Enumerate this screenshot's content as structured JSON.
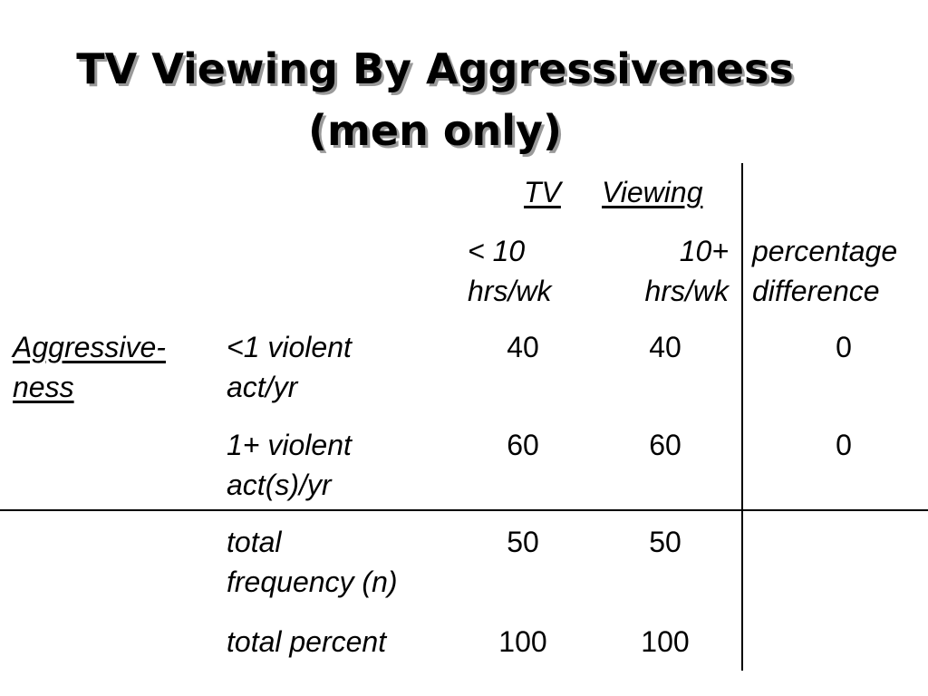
{
  "title": {
    "line1": "TV Viewing By Aggressiveness",
    "line2": "(men only)"
  },
  "header": {
    "group_tv": "TV",
    "group_viewing": "Viewing",
    "col1": "< 10\nhrs/wk",
    "col2": "10+\nhrs/wk",
    "col3": "percentage\ndifference"
  },
  "row_group_label": "Aggressive-\nness",
  "rows": [
    {
      "label": "<1 violent\nact/yr",
      "c1": "40",
      "c2": "40",
      "diff": "0"
    },
    {
      "label": "1+ violent\nact(s)/yr",
      "c1": "60",
      "c2": "60",
      "diff": "0"
    }
  ],
  "totals": [
    {
      "label": "total\nfrequency (n)",
      "c1": "50",
      "c2": "50"
    },
    {
      "label": "total percent",
      "c1": "100",
      "c2": "100"
    }
  ]
}
